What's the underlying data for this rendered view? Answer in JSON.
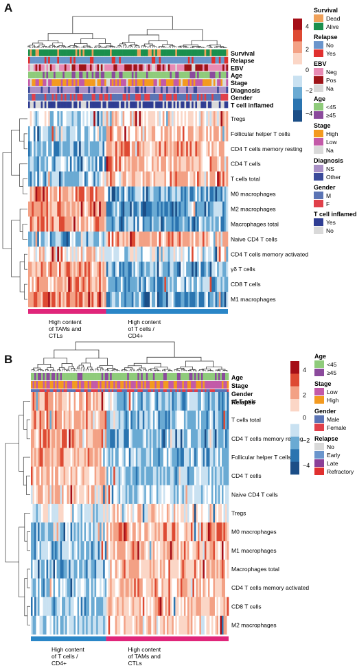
{
  "palette": {
    "neg4": "#1b4e87",
    "neg3": "#2a74b0",
    "neg2": "#6aaad3",
    "neg1": "#c9e1f1",
    "zero": "#ffffff",
    "pos1": "#fbd6c6",
    "pos2": "#f3a185",
    "pos3": "#de4a33",
    "pos4": "#a50e17"
  },
  "panels": [
    {
      "letter": "A",
      "scale": {
        "ticks": [
          "4",
          "2",
          "0",
          "−2",
          "−4"
        ]
      },
      "annotations": [
        {
          "label": "Survival",
          "levels": [
            {
              "name": "Dead",
              "color": "#f0a15a"
            },
            {
              "name": "Alive",
              "color": "#1a8f4d"
            }
          ],
          "weights": [
            0.18,
            0.82
          ]
        },
        {
          "label": "Relapse",
          "levels": [
            {
              "name": "No",
              "color": "#6a95cc"
            },
            {
              "name": "Yes",
              "color": "#e0302f"
            }
          ],
          "weights": [
            0.8,
            0.2
          ]
        },
        {
          "label": "EBV",
          "levels": [
            {
              "name": "Neg",
              "color": "#e88bb4"
            },
            {
              "name": "Pos",
              "color": "#9e1418"
            },
            {
              "name": "Na",
              "color": "#d9d9d9"
            }
          ],
          "weights": [
            0.5,
            0.35,
            0.15
          ]
        },
        {
          "label": "Age",
          "levels": [
            {
              "name": "<45",
              "color": "#8fcb7b"
            },
            {
              "name": "≥45",
              "color": "#8b4a9c"
            }
          ],
          "weights": [
            0.72,
            0.28
          ]
        },
        {
          "label": "Stage",
          "levels": [
            {
              "name": "High",
              "color": "#f39a1f"
            },
            {
              "name": "Low",
              "color": "#c35aa8"
            },
            {
              "name": "Na",
              "color": "#d9d9d9"
            }
          ],
          "weights": [
            0.5,
            0.4,
            0.1
          ]
        },
        {
          "label": "Diagnosis",
          "levels": [
            {
              "name": "NS",
              "color": "#a990c6"
            },
            {
              "name": "Other",
              "color": "#3a4a9a"
            }
          ],
          "weights": [
            0.75,
            0.25
          ]
        },
        {
          "label": "Gender",
          "levels": [
            {
              "name": "M",
              "color": "#5b74b4"
            },
            {
              "name": "F",
              "color": "#e0404a"
            }
          ],
          "weights": [
            0.6,
            0.4
          ]
        },
        {
          "label": "T cell inflamed",
          "levels": [
            {
              "name": "Yes",
              "color": "#2f3d93"
            },
            {
              "name": "No",
              "color": "#d9d9d9"
            }
          ],
          "weights": [
            0.7,
            0.3
          ]
        }
      ],
      "rows": [
        "Tregs",
        "Follicular helper T cells",
        "CD4 T cells memory resting",
        "CD4 T cells",
        "T cells total",
        "M0 macrophages",
        "M2 macrophages",
        "Macrophages total",
        "Naive CD4 T cells",
        "CD4 T cells memory activated",
        "γδ T cells",
        "CD8 T cells",
        "M1 macrophages"
      ],
      "clusters": [
        {
          "label": "High content of TAMs and CTLs",
          "color": "#e0257a"
        },
        {
          "label": "High content of T cells / CD4+",
          "color": "#2a86c7"
        }
      ]
    },
    {
      "letter": "B",
      "scale": {
        "ticks": [
          "4",
          "2",
          "0",
          "−2",
          "−4"
        ]
      },
      "annotations": [
        {
          "label": "Age",
          "levels": [
            {
              "name": "<45",
              "color": "#8fcb7b"
            },
            {
              "name": "≥45",
              "color": "#8b4a9c"
            }
          ],
          "weights": [
            0.7,
            0.3
          ]
        },
        {
          "label": "Stage",
          "levels": [
            {
              "name": "Low",
              "color": "#c35aa8"
            },
            {
              "name": "High",
              "color": "#f39a1f"
            }
          ],
          "weights": [
            0.55,
            0.45
          ]
        },
        {
          "label": "Gender",
          "levels": [
            {
              "name": "Male",
              "color": "#5b74b4"
            },
            {
              "name": "Female",
              "color": "#e0404a"
            }
          ],
          "weights": [
            0.6,
            0.4
          ]
        },
        {
          "label": "Relapse",
          "levels": [
            {
              "name": "No",
              "color": "#d9d9d9"
            },
            {
              "name": "Early",
              "color": "#6a95cc"
            },
            {
              "name": "Late",
              "color": "#8b3f97"
            },
            {
              "name": "Refractory",
              "color": "#e0302f"
            }
          ],
          "weights": [
            0.7,
            0.1,
            0.1,
            0.1
          ]
        }
      ],
      "rows": [
        "γδ T cells",
        "T cells total",
        "CD4 T cells memory resting",
        "Follicular helper T cells",
        "CD4 T cells",
        "Naive CD4 T cells",
        "Tregs",
        "M0 macrophages",
        "M1 macrophages",
        "Macrophages total",
        "CD4 T cells memory activated",
        "CD8 T cells",
        "M2 macrophages"
      ],
      "clusters": [
        {
          "label": "High content of T cells / CD4+",
          "color": "#2a86c7"
        },
        {
          "label": "High content of TAMs and CTLs",
          "color": "#e0257a"
        }
      ]
    }
  ]
}
